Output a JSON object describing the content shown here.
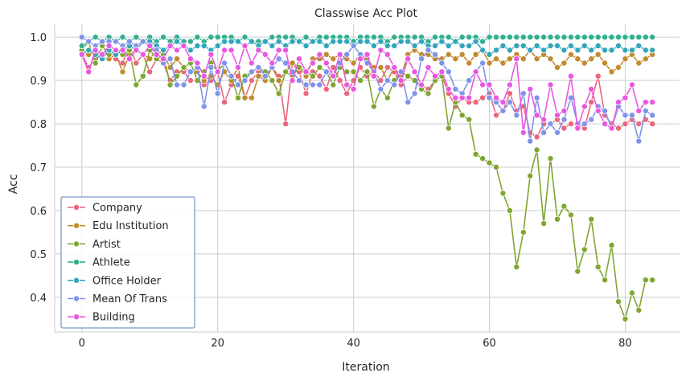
{
  "chart_data": {
    "type": "line",
    "title": "Classwise Acc Plot",
    "xlabel": "Iteration",
    "ylabel": "Acc",
    "xlim": [
      -4,
      88
    ],
    "ylim": [
      0.32,
      1.03
    ],
    "xticks": [
      0,
      20,
      40,
      60,
      80
    ],
    "yticks": [
      0.4,
      0.5,
      0.6,
      0.7,
      0.8,
      0.9,
      1.0
    ],
    "ytick_labels": [
      "0.4",
      "0.5",
      "0.6",
      "0.7",
      "0.8",
      "0.9",
      "1.0"
    ],
    "grid": true,
    "legend_position": "lower-left",
    "x": [
      0,
      1,
      2,
      3,
      4,
      5,
      6,
      7,
      8,
      9,
      10,
      11,
      12,
      13,
      14,
      15,
      16,
      17,
      18,
      19,
      20,
      21,
      22,
      23,
      24,
      25,
      26,
      27,
      28,
      29,
      30,
      31,
      32,
      33,
      34,
      35,
      36,
      37,
      38,
      39,
      40,
      41,
      42,
      43,
      44,
      45,
      46,
      47,
      48,
      49,
      50,
      51,
      52,
      53,
      54,
      55,
      56,
      57,
      58,
      59,
      60,
      61,
      62,
      63,
      64,
      65,
      66,
      67,
      68,
      69,
      70,
      71,
      72,
      73,
      74,
      75,
      76,
      77,
      78,
      79,
      80,
      81,
      82,
      83,
      84
    ],
    "series": [
      {
        "name": "Company",
        "color": "#e8677d",
        "values": [
          0.96,
          0.93,
          0.95,
          0.96,
          0.97,
          0.95,
          0.94,
          0.98,
          0.94,
          0.96,
          0.92,
          0.95,
          0.94,
          0.9,
          0.92,
          0.92,
          0.9,
          0.9,
          0.89,
          0.9,
          0.92,
          0.85,
          0.89,
          0.91,
          0.86,
          0.9,
          0.92,
          0.9,
          0.93,
          0.91,
          0.8,
          0.94,
          0.92,
          0.87,
          0.92,
          0.91,
          0.88,
          0.93,
          0.9,
          0.87,
          0.9,
          0.93,
          0.91,
          0.92,
          0.9,
          0.93,
          0.92,
          0.89,
          0.91,
          0.9,
          0.89,
          0.88,
          0.9,
          0.91,
          0.87,
          0.84,
          0.86,
          0.85,
          0.85,
          0.86,
          0.87,
          0.82,
          0.83,
          0.87,
          0.83,
          0.84,
          0.78,
          0.77,
          0.8,
          0.8,
          0.81,
          0.79,
          0.8,
          0.8,
          0.79,
          0.85,
          0.91,
          0.82,
          0.8,
          0.79,
          0.8,
          0.81,
          0.8,
          0.81,
          0.8
        ]
      },
      {
        "name": "Edu Institution",
        "color": "#c18a2f",
        "values": [
          0.97,
          0.96,
          0.97,
          0.95,
          0.95,
          0.96,
          0.92,
          0.96,
          0.97,
          0.96,
          0.95,
          0.97,
          0.96,
          0.93,
          0.95,
          0.93,
          0.92,
          0.92,
          0.9,
          0.91,
          0.89,
          0.92,
          0.9,
          0.93,
          0.86,
          0.86,
          0.91,
          0.9,
          0.93,
          0.9,
          0.92,
          0.94,
          0.93,
          0.91,
          0.95,
          0.95,
          0.96,
          0.95,
          0.96,
          0.95,
          0.94,
          0.96,
          0.95,
          0.93,
          0.93,
          0.9,
          0.93,
          0.91,
          0.96,
          0.97,
          0.96,
          0.96,
          0.95,
          0.95,
          0.96,
          0.95,
          0.96,
          0.94,
          0.96,
          0.97,
          0.94,
          0.95,
          0.94,
          0.95,
          0.96,
          0.95,
          0.97,
          0.95,
          0.96,
          0.95,
          0.93,
          0.94,
          0.96,
          0.95,
          0.94,
          0.95,
          0.96,
          0.94,
          0.92,
          0.93,
          0.95,
          0.96,
          0.94,
          0.95,
          0.96
        ]
      },
      {
        "name": "Artist",
        "color": "#7ea631",
        "values": [
          0.97,
          0.99,
          0.94,
          0.98,
          0.96,
          0.97,
          0.96,
          0.97,
          0.89,
          0.91,
          0.97,
          0.95,
          0.96,
          0.89,
          0.91,
          0.93,
          0.94,
          0.9,
          0.92,
          0.94,
          0.92,
          0.94,
          0.91,
          0.86,
          0.91,
          0.92,
          0.93,
          0.92,
          0.9,
          0.87,
          0.92,
          0.91,
          0.93,
          0.92,
          0.91,
          0.93,
          0.92,
          0.89,
          0.93,
          0.92,
          0.92,
          0.9,
          0.92,
          0.84,
          0.88,
          0.86,
          0.9,
          0.92,
          0.91,
          0.9,
          0.88,
          0.87,
          0.9,
          0.91,
          0.79,
          0.85,
          0.82,
          0.81,
          0.73,
          0.72,
          0.71,
          0.7,
          0.64,
          0.6,
          0.47,
          0.55,
          0.68,
          0.74,
          0.57,
          0.72,
          0.58,
          0.61,
          0.59,
          0.46,
          0.51,
          0.58,
          0.47,
          0.44,
          0.52,
          0.39,
          0.35,
          0.41,
          0.37,
          0.44,
          0.44
        ]
      },
      {
        "name": "Athlete",
        "color": "#31af8e",
        "values": [
          0.98,
          0.99,
          1.0,
          0.99,
          1.0,
          0.99,
          1.0,
          0.99,
          1.0,
          0.99,
          1.0,
          0.99,
          1.0,
          0.99,
          1.0,
          0.99,
          0.99,
          1.0,
          0.99,
          1.0,
          1.0,
          1.0,
          1.0,
          0.99,
          1.0,
          0.99,
          0.99,
          0.99,
          1.0,
          1.0,
          1.0,
          1.0,
          0.99,
          1.0,
          0.99,
          1.0,
          1.0,
          1.0,
          1.0,
          1.0,
          0.99,
          1.0,
          1.0,
          1.0,
          1.0,
          0.99,
          1.0,
          1.0,
          1.0,
          1.0,
          1.0,
          0.99,
          1.0,
          1.0,
          1.0,
          0.99,
          1.0,
          1.0,
          1.0,
          0.99,
          1.0,
          1.0,
          1.0,
          1.0,
          1.0,
          1.0,
          1.0,
          1.0,
          1.0,
          1.0,
          1.0,
          1.0,
          1.0,
          1.0,
          1.0,
          1.0,
          1.0,
          1.0,
          1.0,
          1.0,
          1.0,
          1.0,
          1.0,
          1.0,
          1.0
        ]
      },
      {
        "name": "Office Holder",
        "color": "#33a5ba",
        "values": [
          0.96,
          0.97,
          0.96,
          0.95,
          0.97,
          0.96,
          0.97,
          0.98,
          0.97,
          0.99,
          0.99,
          0.98,
          0.97,
          0.98,
          0.99,
          0.98,
          0.97,
          0.98,
          0.98,
          0.97,
          0.98,
          0.99,
          0.99,
          0.99,
          0.98,
          0.99,
          0.98,
          0.99,
          0.98,
          0.99,
          0.98,
          0.99,
          0.99,
          0.98,
          0.99,
          0.99,
          0.98,
          0.99,
          0.99,
          0.99,
          0.98,
          0.99,
          0.99,
          0.98,
          0.99,
          0.98,
          0.98,
          0.99,
          0.99,
          0.98,
          0.99,
          0.98,
          0.98,
          0.99,
          0.98,
          0.99,
          0.98,
          0.98,
          0.99,
          0.97,
          0.96,
          0.97,
          0.98,
          0.97,
          0.98,
          0.98,
          0.97,
          0.98,
          0.97,
          0.98,
          0.98,
          0.97,
          0.98,
          0.97,
          0.98,
          0.97,
          0.98,
          0.97,
          0.97,
          0.98,
          0.97,
          0.97,
          0.98,
          0.97,
          0.97
        ]
      },
      {
        "name": "Mean Of Trans",
        "color": "#7e93ea",
        "values": [
          1.0,
          0.99,
          0.98,
          0.99,
          0.99,
          0.99,
          0.98,
          0.99,
          0.98,
          0.99,
          0.98,
          0.97,
          0.94,
          0.95,
          0.89,
          0.89,
          0.92,
          0.93,
          0.84,
          0.93,
          0.87,
          0.94,
          0.91,
          0.89,
          0.9,
          0.92,
          0.93,
          0.91,
          0.93,
          0.95,
          0.94,
          0.92,
          0.9,
          0.89,
          0.89,
          0.89,
          0.92,
          0.91,
          0.94,
          0.96,
          0.98,
          0.96,
          0.94,
          0.92,
          0.88,
          0.9,
          0.89,
          0.92,
          0.85,
          0.87,
          0.95,
          0.97,
          0.96,
          0.94,
          0.92,
          0.88,
          0.87,
          0.9,
          0.92,
          0.94,
          0.86,
          0.85,
          0.83,
          0.85,
          0.82,
          0.87,
          0.76,
          0.86,
          0.78,
          0.8,
          0.78,
          0.81,
          0.86,
          0.8,
          0.8,
          0.81,
          0.84,
          0.83,
          0.79,
          0.84,
          0.82,
          0.82,
          0.76,
          0.83,
          0.82
        ]
      },
      {
        "name": "Building",
        "color": "#e858e0",
        "values": [
          0.96,
          0.92,
          0.97,
          0.96,
          0.98,
          0.97,
          0.97,
          0.95,
          0.97,
          0.96,
          0.98,
          0.96,
          0.95,
          0.98,
          0.97,
          0.98,
          0.95,
          0.94,
          0.91,
          0.96,
          0.92,
          0.97,
          0.97,
          0.93,
          0.98,
          0.94,
          0.97,
          0.96,
          0.94,
          0.97,
          0.97,
          0.9,
          0.95,
          0.92,
          0.94,
          0.96,
          0.94,
          0.91,
          0.96,
          0.89,
          0.88,
          0.95,
          0.96,
          0.91,
          0.97,
          0.96,
          0.93,
          0.9,
          0.95,
          0.92,
          0.89,
          0.93,
          0.91,
          0.92,
          0.88,
          0.86,
          0.86,
          0.86,
          0.92,
          0.89,
          0.89,
          0.86,
          0.85,
          0.89,
          0.95,
          0.78,
          0.88,
          0.82,
          0.81,
          0.89,
          0.82,
          0.83,
          0.91,
          0.79,
          0.84,
          0.88,
          0.83,
          0.8,
          0.79,
          0.85,
          0.86,
          0.89,
          0.83,
          0.85,
          0.85
        ]
      }
    ]
  }
}
